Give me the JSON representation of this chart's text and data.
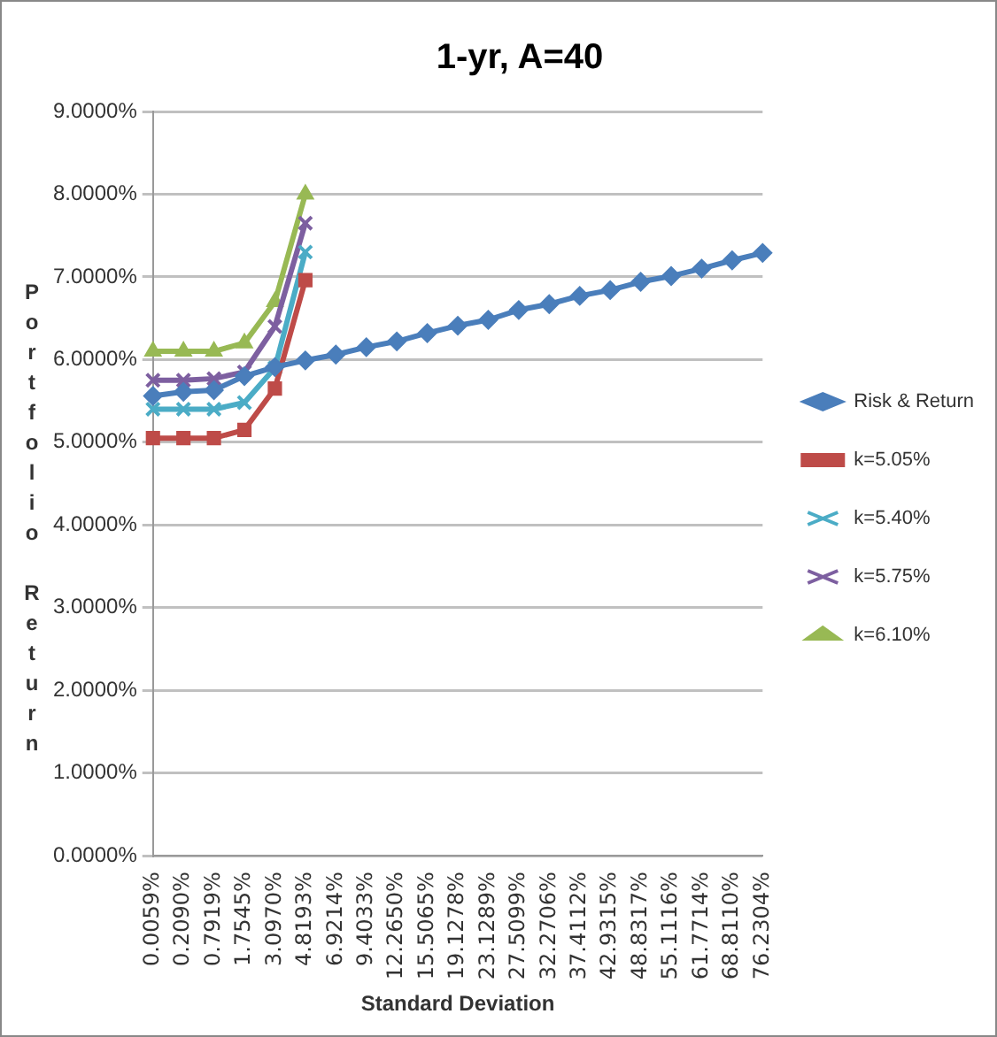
{
  "chart_data": {
    "type": "line",
    "title": "1-yr, A=40",
    "xlabel": "Standard Deviation",
    "ylabel": "Portfolio Return",
    "categories": [
      "0.0059%",
      "0.2090%",
      "0.7919%",
      "1.7545%",
      "3.0970%",
      "4.8193%",
      "6.9214%",
      "9.4033%",
      "12.2650%",
      "15.5065%",
      "19.1278%",
      "23.1289%",
      "27.5099%",
      "32.2706%",
      "37.4112%",
      "42.9315%",
      "48.8317%",
      "55.1116%",
      "61.7714%",
      "68.8110%",
      "76.2304%"
    ],
    "series": [
      {
        "name": "Risk & Return",
        "color": "#4a7ebb",
        "marker": "diamond",
        "values": [
          5.56,
          5.61,
          5.63,
          5.8,
          5.91,
          5.99,
          6.06,
          6.15,
          6.22,
          6.32,
          6.41,
          6.48,
          6.6,
          6.67,
          6.77,
          6.84,
          6.94,
          7.01,
          7.1,
          7.2,
          7.29
        ]
      },
      {
        "name": "k=5.05%",
        "color": "#be4b48",
        "marker": "square",
        "values": [
          5.05,
          5.05,
          5.05,
          5.15,
          5.65,
          6.96,
          null,
          null,
          null,
          null,
          null,
          null,
          null,
          null,
          null,
          null,
          null,
          null,
          null,
          null,
          null
        ]
      },
      {
        "name": "k=5.40%",
        "color": "#4bacc6",
        "marker": "cross",
        "values": [
          5.4,
          5.4,
          5.4,
          5.48,
          5.9,
          7.3,
          null,
          null,
          null,
          null,
          null,
          null,
          null,
          null,
          null,
          null,
          null,
          null,
          null,
          null,
          null
        ]
      },
      {
        "name": "k=5.75%",
        "color": "#7d5fa0",
        "marker": "cross",
        "values": [
          5.75,
          5.75,
          5.77,
          5.85,
          6.4,
          7.65,
          null,
          null,
          null,
          null,
          null,
          null,
          null,
          null,
          null,
          null,
          null,
          null,
          null,
          null,
          null
        ]
      },
      {
        "name": "k=6.10%",
        "color": "#98b954",
        "marker": "triangle",
        "values": [
          6.1,
          6.1,
          6.1,
          6.2,
          6.7,
          8.0,
          null,
          null,
          null,
          null,
          null,
          null,
          null,
          null,
          null,
          null,
          null,
          null,
          null,
          null,
          null
        ]
      }
    ],
    "ylim": [
      0,
      9
    ],
    "yticks": [
      {
        "value": 0,
        "label": "0.0000%"
      },
      {
        "value": 1,
        "label": "1.0000%"
      },
      {
        "value": 2,
        "label": "2.0000%"
      },
      {
        "value": 3,
        "label": "3.0000%"
      },
      {
        "value": 4,
        "label": "4.0000%"
      },
      {
        "value": 5,
        "label": "5.0000%"
      },
      {
        "value": 6,
        "label": "6.0000%"
      },
      {
        "value": 7,
        "label": "7.0000%"
      },
      {
        "value": 8,
        "label": "8.0000%"
      },
      {
        "value": 9,
        "label": "9.0000%"
      }
    ],
    "grid": "y",
    "legend": "right",
    "line_style": "solid"
  }
}
